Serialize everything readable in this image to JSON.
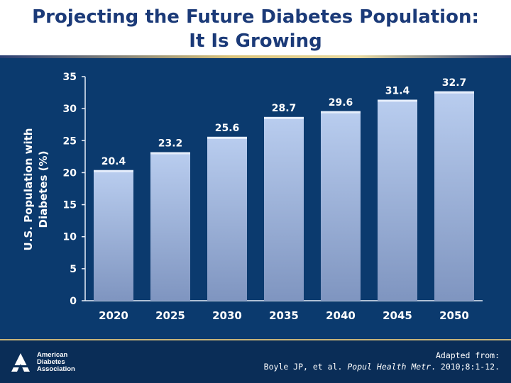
{
  "slide": {
    "title_line1": "Projecting the Future Diabetes Population:",
    "title_line2": "It Is Growing"
  },
  "footer": {
    "logo": "American Diabetes Association",
    "logo_lines": [
      "American",
      "Diabetes",
      "Association"
    ],
    "citation_prefix": "Adapted from:",
    "citation_authors": "Boyle JP, et al.",
    "citation_journal": "Popul Health Metr",
    "citation_rest": ". 2010;8:1-12."
  },
  "colors": {
    "title": "#1b3a78",
    "panel_bg": "#0b3a6e",
    "bar_top": "#b9cdef",
    "bar_bottom": "#7f95c0",
    "text": "#ffffff"
  },
  "chart_data": {
    "type": "bar",
    "title": "",
    "xlabel": "",
    "ylabel_line1": "U.S. Population with",
    "ylabel_line2": "Diabetes (%)",
    "categories": [
      "2020",
      "2025",
      "2030",
      "2035",
      "2040",
      "2045",
      "2050"
    ],
    "values": [
      20.4,
      23.2,
      25.6,
      28.7,
      29.6,
      31.4,
      32.7
    ],
    "value_labels": [
      "20.4",
      "23.2",
      "25.6",
      "28.7",
      "29.6",
      "31.4",
      "32.7"
    ],
    "ylim": [
      0,
      35
    ],
    "yticks": [
      0,
      5,
      10,
      15,
      20,
      25,
      30,
      35
    ],
    "grid": false,
    "legend": "none"
  }
}
